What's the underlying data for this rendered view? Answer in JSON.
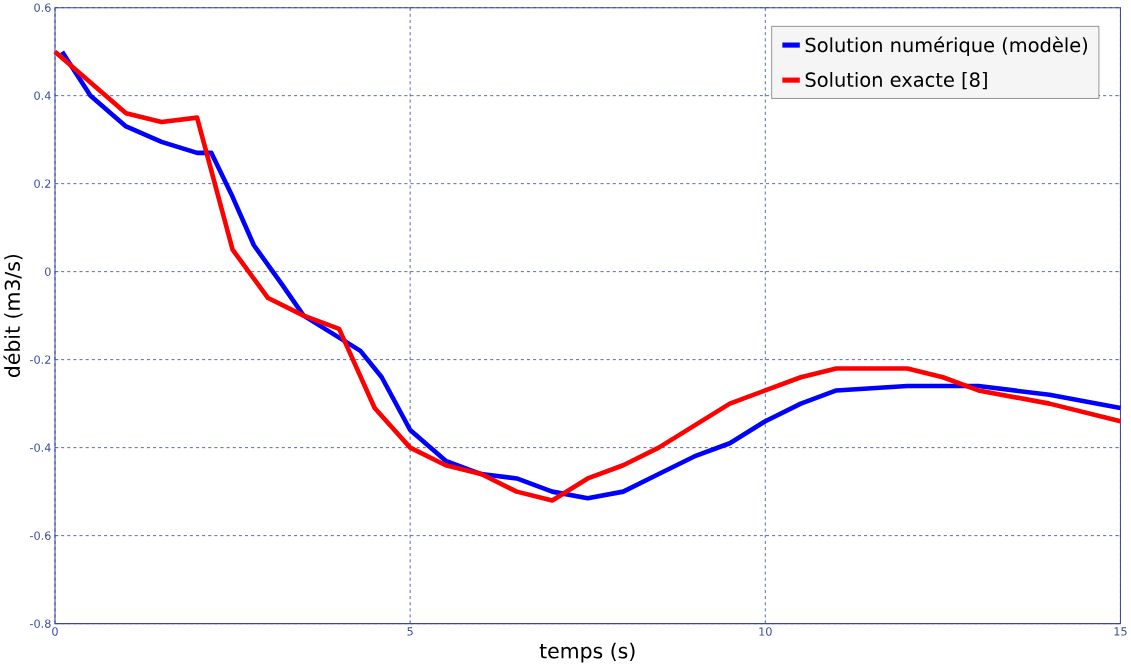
{
  "chart_data": {
    "type": "line",
    "xlabel": "temps (s)",
    "ylabel": "débit (m3/s)",
    "xlim": [
      0,
      15
    ],
    "ylim": [
      -0.8,
      0.6
    ],
    "xticks": [
      0,
      5,
      10,
      15
    ],
    "yticks": [
      -0.8,
      -0.6,
      -0.4,
      -0.2,
      0,
      0.2,
      0.4,
      0.6
    ],
    "grid": true,
    "legend": "top right",
    "line_style": "solid",
    "marker": "none",
    "series": [
      {
        "name": "Solution numérique (modèle)",
        "color": "#0000ff",
        "x": [
          0.1,
          0.5,
          1,
          1.5,
          2,
          2.2,
          2.5,
          2.8,
          3.2,
          3.5,
          4,
          4.3,
          4.6,
          5,
          5.5,
          6,
          6.5,
          7,
          7.5,
          8,
          8.5,
          9,
          9.5,
          10,
          10.5,
          11,
          12,
          13,
          14,
          15
        ],
        "values": [
          0.5,
          0.4,
          0.33,
          0.295,
          0.27,
          0.27,
          0.17,
          0.06,
          -0.03,
          -0.1,
          -0.15,
          -0.18,
          -0.24,
          -0.36,
          -0.43,
          -0.46,
          -0.47,
          -0.5,
          -0.515,
          -0.5,
          -0.46,
          -0.42,
          -0.39,
          -0.34,
          -0.3,
          -0.27,
          -0.26,
          -0.26,
          -0.28,
          -0.31
        ]
      },
      {
        "name": "Solution exacte [8]",
        "color": "#ff0000",
        "x": [
          0,
          0.5,
          1,
          1.5,
          2,
          2.5,
          3,
          3.5,
          4,
          4.5,
          5,
          5.5,
          6,
          6.5,
          7,
          7.5,
          8,
          8.5,
          9,
          9.5,
          10,
          10.5,
          11,
          12,
          12.5,
          13,
          14,
          15
        ],
        "values": [
          0.5,
          0.43,
          0.36,
          0.34,
          0.35,
          0.05,
          -0.06,
          -0.1,
          -0.13,
          -0.31,
          -0.4,
          -0.44,
          -0.46,
          -0.5,
          -0.52,
          -0.47,
          -0.44,
          -0.4,
          -0.35,
          -0.3,
          -0.27,
          -0.24,
          -0.22,
          -0.22,
          -0.24,
          -0.27,
          -0.3,
          -0.34
        ]
      }
    ]
  }
}
